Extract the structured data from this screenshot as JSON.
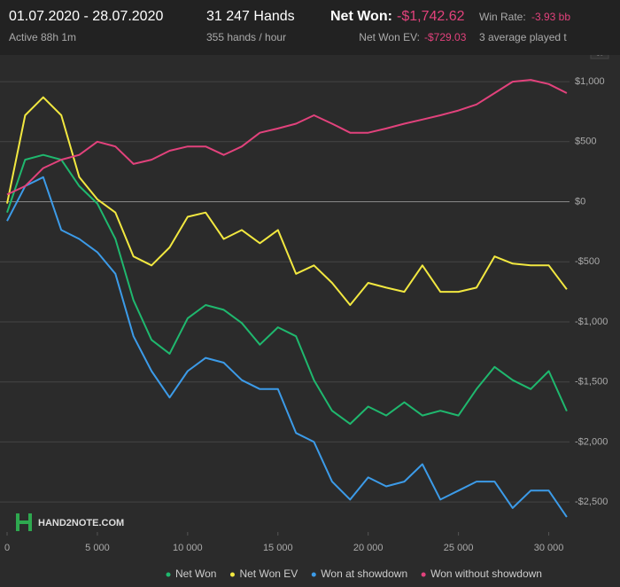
{
  "header": {
    "dates": "01.07.2020 - 28.07.2020",
    "active": "Active 88h 1m",
    "hands": "31 247 Hands",
    "rate": "355 hands / hour",
    "net_won_label": "Net Won:",
    "net_won": "-$1,742.62",
    "win_rate_label": "Win Rate:",
    "win_rate": "-3.93 bb",
    "ev_label": "Net Won  EV:",
    "ev": "-$729.03",
    "tables": "3 average played t"
  },
  "logo": "HAND2NOTE.COM",
  "chart_data": {
    "type": "line",
    "x": [
      0,
      1000,
      2000,
      3000,
      4000,
      5000,
      6000,
      7000,
      8000,
      9000,
      10000,
      11000,
      12000,
      13000,
      14000,
      15000,
      16000,
      17000,
      18000,
      19000,
      20000,
      21000,
      22000,
      23000,
      24000,
      25000,
      26000,
      27000,
      28000,
      29000,
      30000,
      31000
    ],
    "series": [
      {
        "name": "Net Won",
        "color": "#1fb86e",
        "values": [
          -90,
          350,
          390,
          350,
          130,
          -15,
          -310,
          -820,
          -1150,
          -1265,
          -970,
          -860,
          -900,
          -1010,
          -1190,
          -1045,
          -1120,
          -1485,
          -1740,
          -1850,
          -1705,
          -1780,
          -1670,
          -1780,
          -1740,
          -1780,
          -1560,
          -1375,
          -1485,
          -1560,
          -1410,
          -1742.62
        ]
      },
      {
        "name": "Net Won  EV",
        "color": "#f2e840",
        "values": [
          -15,
          720,
          870,
          720,
          205,
          20,
          -90,
          -455,
          -530,
          -380,
          -125,
          -90,
          -310,
          -235,
          -345,
          -235,
          -600,
          -530,
          -675,
          -860,
          -675,
          -715,
          -750,
          -530,
          -750,
          -750,
          -715,
          -455,
          -515,
          -530,
          -530,
          -729.03
        ]
      },
      {
        "name": "Won at showdown",
        "color": "#3c9be8",
        "values": [
          -160,
          130,
          205,
          -235,
          -310,
          -420,
          -600,
          -1120,
          -1410,
          -1630,
          -1410,
          -1300,
          -1340,
          -1485,
          -1560,
          -1560,
          -1925,
          -2000,
          -2330,
          -2480,
          -2295,
          -2370,
          -2330,
          -2185,
          -2480,
          -2405,
          -2330,
          -2330,
          -2550,
          -2405,
          -2405,
          -2625
        ]
      },
      {
        "name": "Won without showdown",
        "color": "#e2427c",
        "values": [
          60,
          130,
          280,
          350,
          390,
          500,
          460,
          315,
          350,
          425,
          460,
          460,
          390,
          460,
          575,
          610,
          650,
          720,
          650,
          575,
          575,
          610,
          650,
          685,
          720,
          760,
          810,
          905,
          1000,
          1015,
          980,
          905
        ]
      }
    ],
    "xlim": [
      0,
      31150
    ],
    "ylim": [
      -2750,
      1200
    ],
    "xticks": [
      0,
      {
        "value": 5000,
        "label": "5 000"
      },
      {
        "value": 10000,
        "label": "10 000"
      },
      {
        "value": 15000,
        "label": "15 000"
      },
      {
        "value": 20000,
        "label": "20 000"
      },
      {
        "value": 25000,
        "label": "25 000"
      },
      {
        "value": 30000,
        "label": "30 000"
      }
    ],
    "yticks": [
      {
        "value": 1000,
        "label": "$1,000"
      },
      {
        "value": 500,
        "label": "$500"
      },
      {
        "value": 0,
        "label": "$0"
      },
      {
        "value": -500,
        "label": "-$500"
      },
      {
        "value": -1000,
        "label": "-$1,000"
      },
      {
        "value": -1500,
        "label": "-$1,500"
      },
      {
        "value": -2000,
        "label": "-$2,000"
      },
      {
        "value": -2500,
        "label": "-$2,500"
      }
    ],
    "grid": true
  }
}
